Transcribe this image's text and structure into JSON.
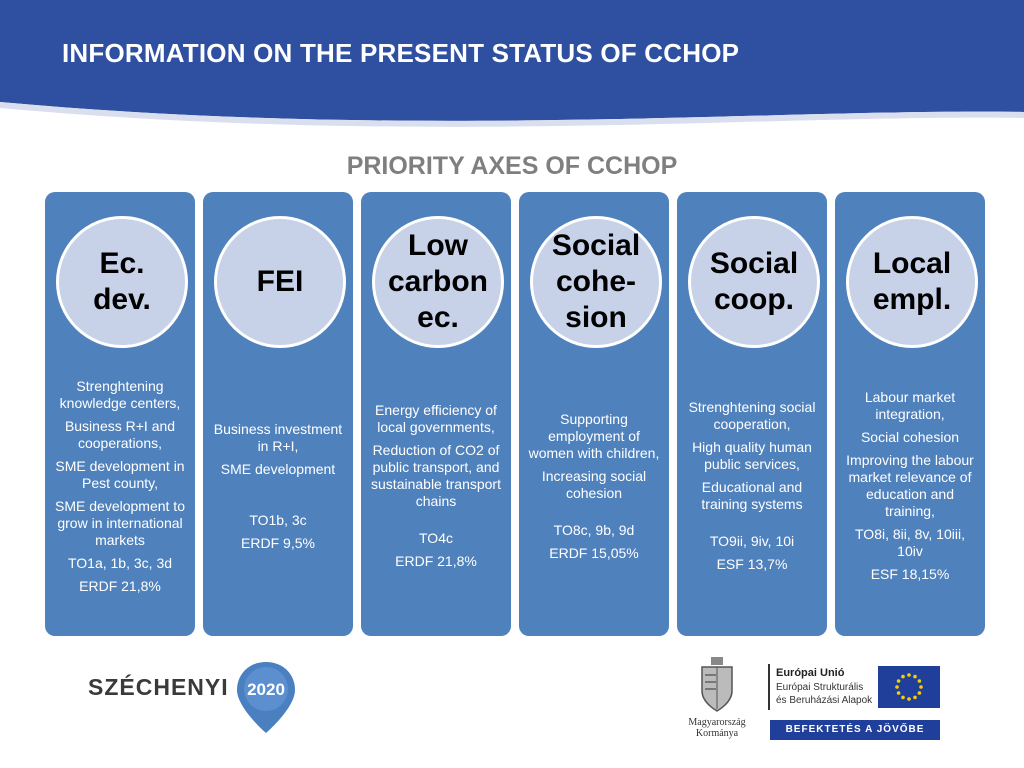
{
  "header": {
    "title": "INFORMATION ON THE PRESENT STATUS OF CCHOP",
    "color": "#2f4fa0"
  },
  "subtitle": "PRIORITY AXES OF CCHOP",
  "axes": [
    {
      "title": "Ec.\ndev.",
      "lines": [
        "Strenghtening knowledge centers,",
        "Business R+I and cooperations,",
        "SME development in Pest county,",
        "SME development to grow in international markets",
        "TO1a, 1b, 3c, 3d",
        "ERDF 21,8%"
      ]
    },
    {
      "title": "FEI",
      "lines": [
        "Business investment in R+I,",
        "SME development",
        "TO1b, 3c",
        "ERDF 9,5%"
      ]
    },
    {
      "title": "Low\ncarbon\nec.",
      "lines": [
        "Energy efficiency of local governments,",
        "Reduction of CO2 of public transport, and sustainable transport chains",
        "TO4c",
        "ERDF 21,8%"
      ]
    },
    {
      "title": "Social\ncohe-\nsion",
      "lines": [
        "Supporting employment of women with children,",
        "Increasing social cohesion",
        "TO8c, 9b, 9d",
        "ERDF 15,05%"
      ]
    },
    {
      "title": "Social\ncoop.",
      "lines": [
        "Strenghtening social cooperation,",
        "High quality human public services,",
        "Educational and training systems",
        "TO9ii, 9iv, 10i",
        "ESF 13,7%"
      ]
    },
    {
      "title": "Local\nempl.",
      "lines": [
        "Labour market integration,",
        "Social cohesion",
        "Improving the labour market relevance of education and training,",
        "TO8i, 8ii, 8v, 10iii, 10iv",
        "ESF 18,15%"
      ]
    }
  ],
  "footer": {
    "szechenyi": "SZÉCHENYI",
    "year": "2020",
    "gov_line1": "Magyarország",
    "gov_line2": "Kormánya",
    "eu_title": "Európai Unió",
    "eu_line1": "Európai Strukturális",
    "eu_line2": "és Beruházási Alapok",
    "eu_banner": "BEFEKTETÉS A JÖVŐBE"
  },
  "colors": {
    "axis_bg": "#4f81bd",
    "circle_bg": "#c7d1e8",
    "subtitle": "#7f7f7f",
    "eu_blue": "#1f3f9a"
  }
}
